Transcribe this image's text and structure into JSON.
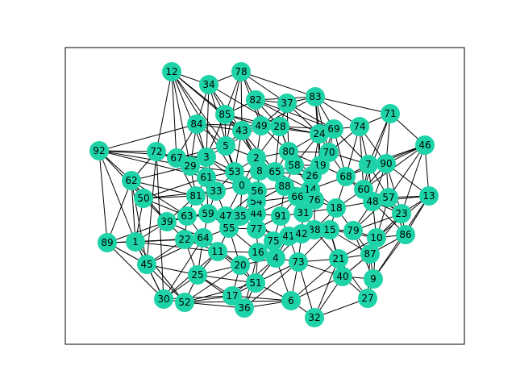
{
  "graph": {
    "node_color": "#1dd3a7",
    "edge_color": "#000000",
    "node_labels": [
      "0",
      "1",
      "2",
      "3",
      "4",
      "5",
      "6",
      "7",
      "8",
      "9",
      "10",
      "11",
      "12",
      "13",
      "14",
      "15",
      "16",
      "17",
      "18",
      "19",
      "20",
      "21",
      "22",
      "23",
      "24",
      "25",
      "26",
      "27",
      "28",
      "29",
      "30",
      "31",
      "32",
      "33",
      "34",
      "35",
      "36",
      "37",
      "38",
      "39",
      "40",
      "41",
      "42",
      "43",
      "44",
      "45",
      "46",
      "47",
      "48",
      "49",
      "50",
      "51",
      "52",
      "53",
      "54",
      "55",
      "56",
      "57",
      "58",
      "59",
      "60",
      "61",
      "62",
      "63",
      "64",
      "65",
      "66",
      "67",
      "68",
      "69",
      "70",
      "71",
      "72",
      "73",
      "74",
      "75",
      "76",
      "77",
      "78",
      "79",
      "80",
      "81",
      "82",
      "83",
      "84",
      "85",
      "86",
      "87",
      "88",
      "89",
      "90",
      "91",
      "92"
    ]
  }
}
